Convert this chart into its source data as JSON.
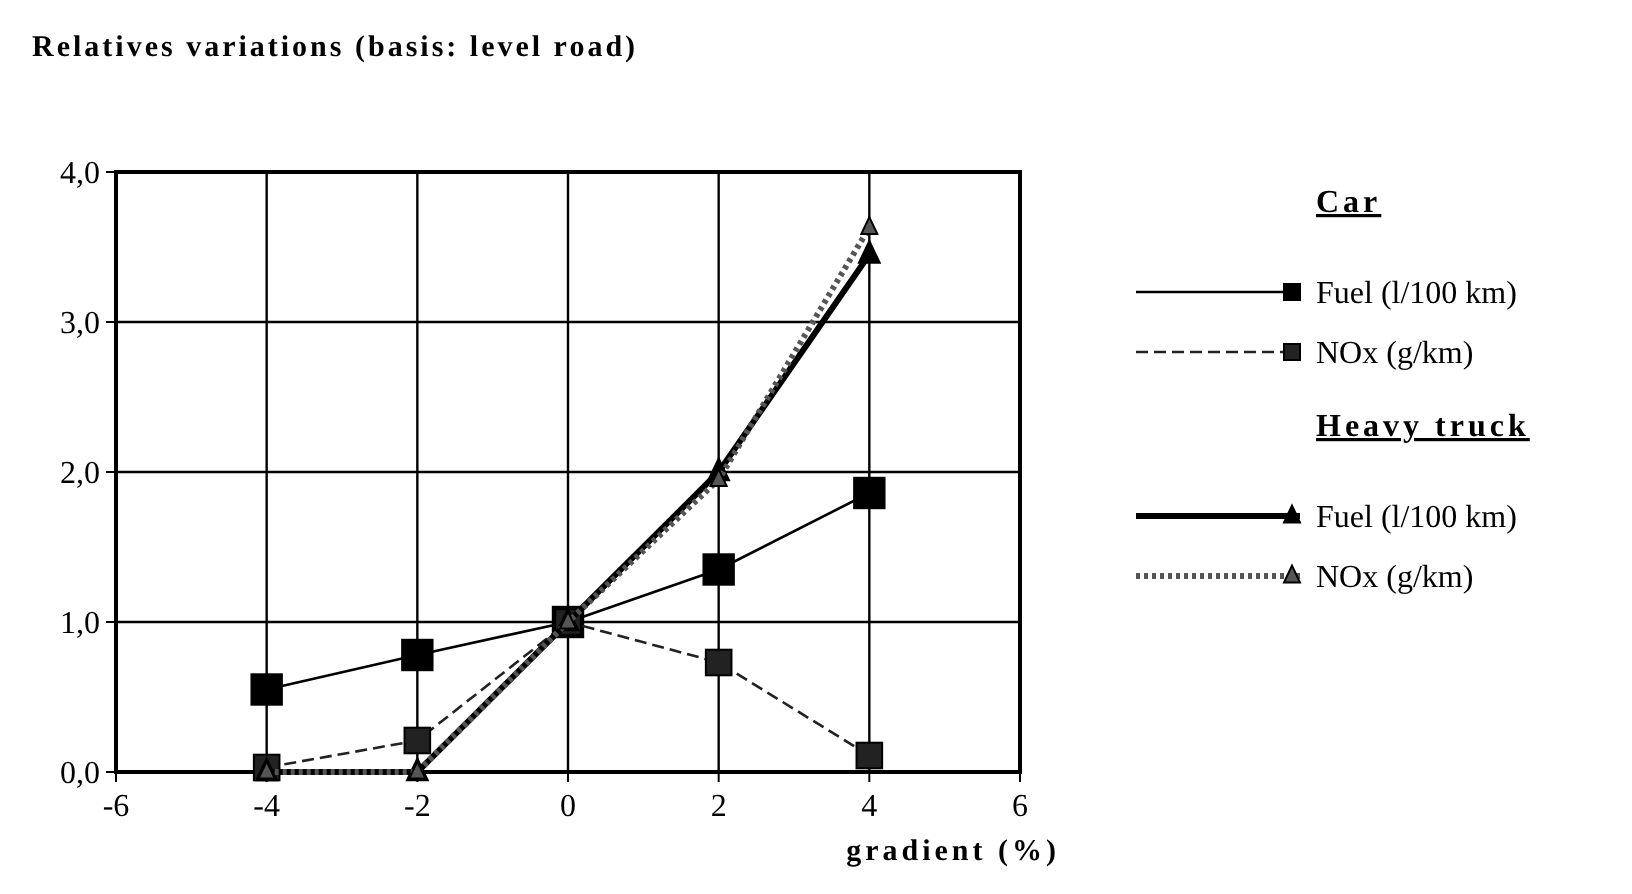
{
  "chart_data": {
    "type": "line",
    "title": "Relatives variations (basis: level road)",
    "xlabel": "gradient (%)",
    "x": [
      -4,
      -2,
      0,
      2,
      4
    ],
    "series": [
      {
        "name": "Fuel (l/100 km)",
        "color": "#000000",
        "values": [
          0.55,
          0.78,
          1.0,
          1.35,
          1.86
        ],
        "marker": "square",
        "line_style": "solid"
      },
      {
        "name": "NOx (g/km)",
        "color": "#222222",
        "values": [
          0.03,
          0.21,
          1.0,
          0.73,
          0.11
        ],
        "marker": "square",
        "line_style": "dashed"
      },
      {
        "name": "Fuel (l/100 km)",
        "color": "#000000",
        "values": [
          0,
          0,
          1.0,
          2.0,
          3.45
        ],
        "marker": "triangle",
        "line_style": "solid"
      },
      {
        "name": "NOx (g/km)",
        "color": "#555555",
        "values": [
          0,
          0,
          1.0,
          1.95,
          3.63
        ],
        "marker": "triangle",
        "line_style": "dotted"
      }
    ],
    "annotations": [
      "Car",
      "Heavy truck"
    ],
    "xlim": [
      -6,
      6
    ],
    "xticks": [
      -6,
      -4,
      -2,
      0,
      2,
      4,
      6
    ],
    "ylim": [
      0,
      4
    ],
    "yticks": [
      {
        "value": 0,
        "label": "0,0"
      },
      {
        "value": 1,
        "label": "1,0"
      },
      {
        "value": 2,
        "label": "2,0"
      },
      {
        "value": 3,
        "label": "3,0"
      },
      {
        "value": 4,
        "label": "4,0"
      }
    ],
    "grid": true,
    "legend": "right"
  }
}
